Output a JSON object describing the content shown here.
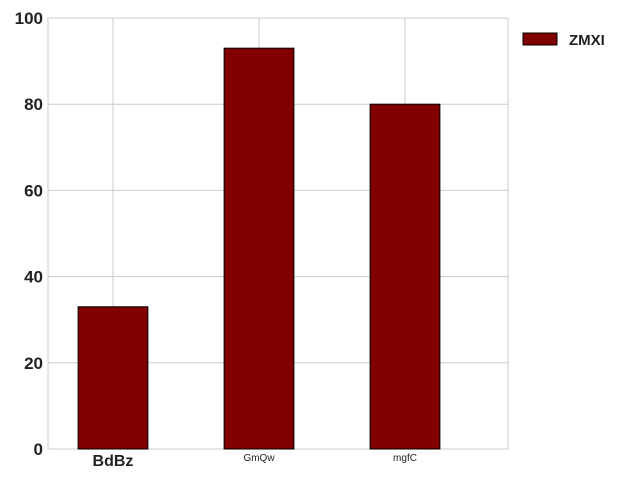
{
  "chart_data": {
    "type": "bar",
    "categories": [
      "BdBz",
      "GmQw",
      "mgfC"
    ],
    "series": [
      {
        "name": "ZMXI",
        "values": [
          33,
          93,
          80
        ],
        "color": "#800000"
      }
    ],
    "ylim": [
      0,
      100
    ],
    "yticks": [
      "0",
      "20",
      "40",
      "60",
      "80",
      "100"
    ],
    "ytick_values": [
      0,
      20,
      40,
      60,
      80,
      100
    ],
    "grid": true,
    "legend": "outside-top-right",
    "title": "",
    "xlabel": "",
    "ylabel": "",
    "category_label_emphasis": [
      "bold",
      "normal",
      "normal"
    ]
  }
}
